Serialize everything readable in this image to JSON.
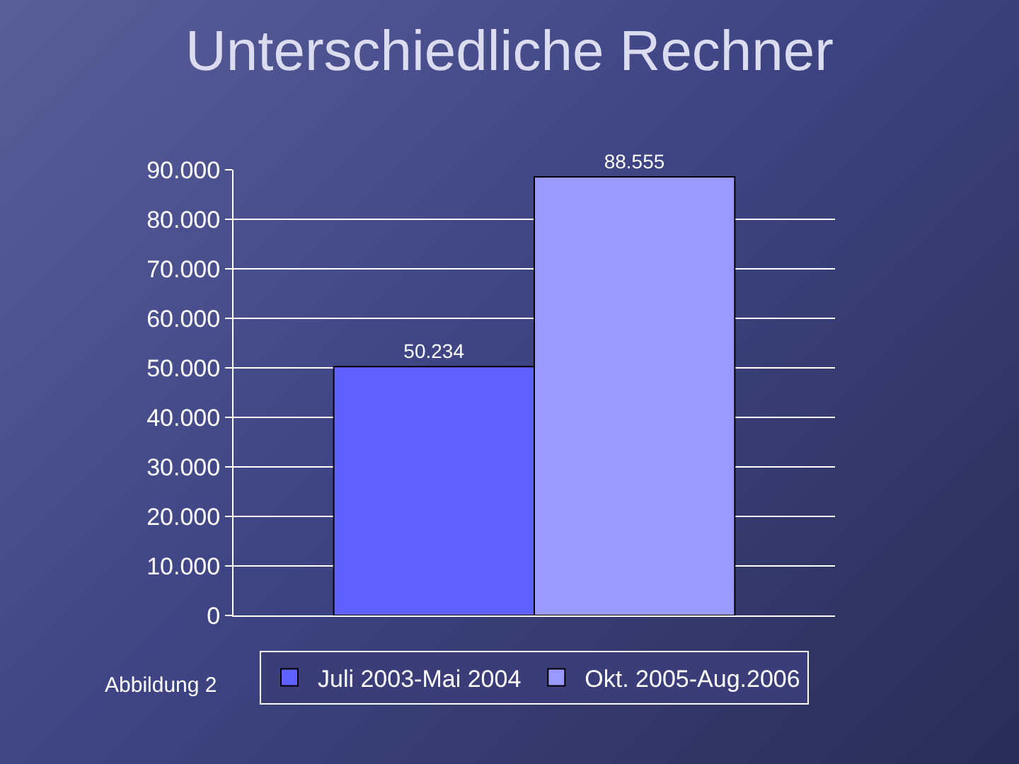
{
  "chart_data": {
    "type": "bar",
    "title": "Unterschiedliche Rechner",
    "categories": [
      null
    ],
    "series": [
      {
        "name": "Juli 2003-Mai 2004",
        "color": "#6060ff",
        "values": [
          50234
        ],
        "value_labels": [
          "50.234"
        ]
      },
      {
        "name": "Okt. 2005-Aug.2006",
        "color": "#9999ff",
        "values": [
          88555
        ],
        "value_labels": [
          "88.555"
        ]
      }
    ],
    "ylim": [
      0,
      90000
    ],
    "yticks": [
      0,
      {
        "value": 10000,
        "label": "10.000"
      },
      {
        "value": 20000,
        "label": "20.000"
      },
      {
        "value": 30000,
        "label": "30.000"
      },
      {
        "value": 40000,
        "label": "40.000"
      },
      {
        "value": 50000,
        "label": "50.000"
      },
      {
        "value": 60000,
        "label": "60.000"
      },
      {
        "value": 70000,
        "label": "70.000"
      },
      {
        "value": 80000,
        "label": "80.000"
      },
      {
        "value": 90000,
        "label": "90.000"
      }
    ],
    "grid": "y",
    "legend": "bottom",
    "tick_labels": "y",
    "annotations": [
      "Abbildung 2"
    ]
  }
}
